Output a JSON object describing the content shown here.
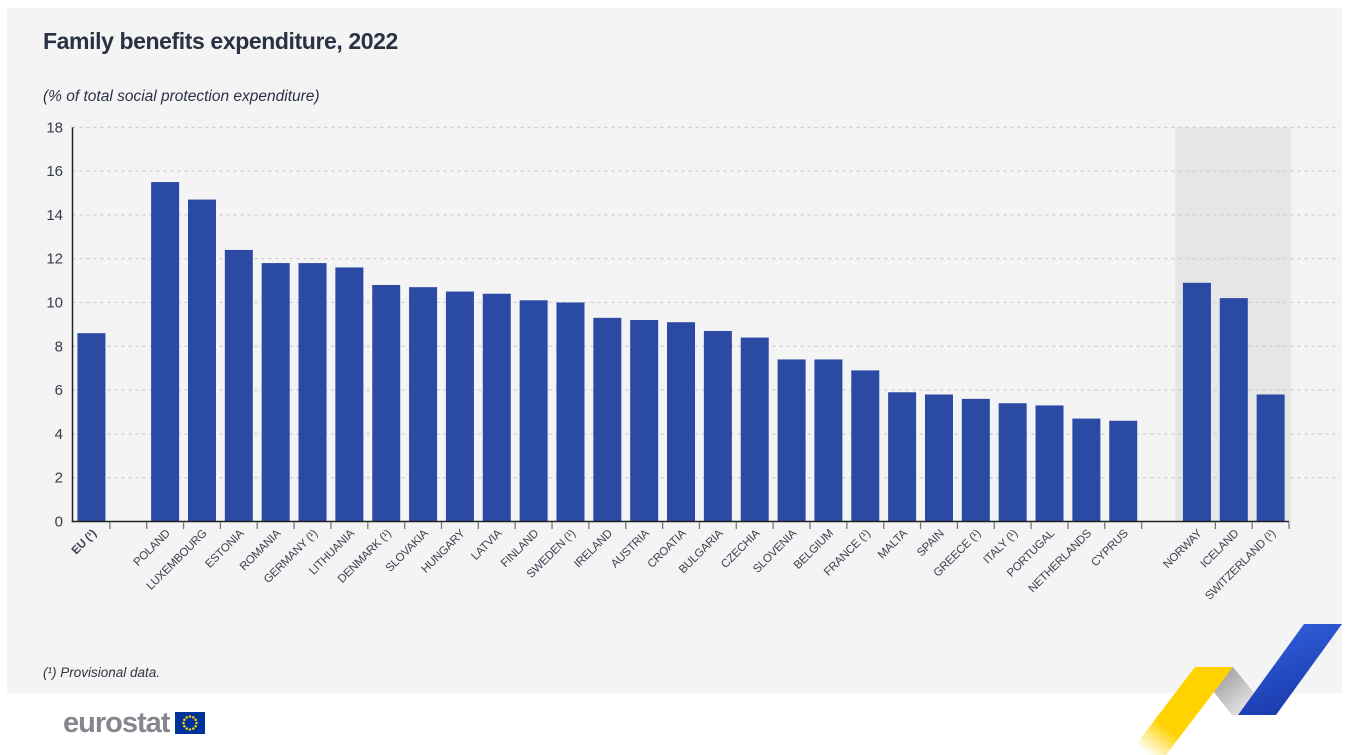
{
  "footnote": "(¹) Provisional data.",
  "logo": {
    "text": "eurostat"
  },
  "colors": {
    "page_bg": "#ffffff",
    "card_bg": "#f4f4f4",
    "bar": "#2a4aa4",
    "efta_shade": "#e6e6e6",
    "gridline": "#c9c9c9",
    "axis_line": "#222222",
    "tick": "#777777",
    "title_text": "#293143",
    "axis_text": "#333b49",
    "label_text": "#3a4150",
    "footnote_text": "#2e3440",
    "logo_text": "#85878f",
    "flag_blue": "#003399",
    "flag_stars": "#ffcc00",
    "ribbon_yellow": "#ffd200",
    "ribbon_yellow_fade": "#ffffff",
    "ribbon_fold_dark": "#a6a6a6",
    "ribbon_fold_light": "#f7f7f7",
    "ribbon_blue_light": "#2f5bd6",
    "ribbon_blue_dark": "#1434a4"
  },
  "chart_data": {
    "type": "bar",
    "title": "Family benefits expenditure, 2022",
    "subtitle": "(% of total social protection expenditure)",
    "ylabel": "",
    "xlabel": "",
    "ylim": [
      0,
      18
    ],
    "y_ticks": [
      0,
      2,
      4,
      6,
      8,
      10,
      12,
      14,
      16,
      18
    ],
    "grid": "horizontal-dashed",
    "legend": "none",
    "sections": [
      {
        "name": "eu-average",
        "shaded": false,
        "bars": [
          {
            "label": "EU (¹)",
            "value": 8.6,
            "bold": true
          }
        ]
      },
      {
        "name": "eu-members",
        "shaded": false,
        "bars": [
          {
            "label": "POLAND",
            "value": 15.5
          },
          {
            "label": "LUXEMBOURG",
            "value": 14.7
          },
          {
            "label": "ESTONIA",
            "value": 12.4
          },
          {
            "label": "ROMANIA",
            "value": 11.8
          },
          {
            "label": "GERMANY (¹)",
            "value": 11.8
          },
          {
            "label": "LITHUANIA",
            "value": 11.6
          },
          {
            "label": "DENMARK (¹)",
            "value": 10.8
          },
          {
            "label": "SLOVAKIA",
            "value": 10.7
          },
          {
            "label": "HUNGARY",
            "value": 10.5
          },
          {
            "label": "LATVIA",
            "value": 10.4
          },
          {
            "label": "FINLAND",
            "value": 10.1
          },
          {
            "label": "SWEDEN (¹)",
            "value": 10.0
          },
          {
            "label": "IRELAND",
            "value": 9.3
          },
          {
            "label": "AUSTRIA",
            "value": 9.2
          },
          {
            "label": "CROATIA",
            "value": 9.1
          },
          {
            "label": "BULGARIA",
            "value": 8.7
          },
          {
            "label": "CZECHIA",
            "value": 8.4
          },
          {
            "label": "SLOVENIA",
            "value": 7.4
          },
          {
            "label": "BELGIUM",
            "value": 7.4
          },
          {
            "label": "FRANCE (¹)",
            "value": 6.9
          },
          {
            "label": "MALTA",
            "value": 5.9
          },
          {
            "label": "SPAIN",
            "value": 5.8
          },
          {
            "label": "GREECE (¹)",
            "value": 5.6
          },
          {
            "label": "ITALY (¹)",
            "value": 5.4
          },
          {
            "label": "PORTUGAL",
            "value": 5.3
          },
          {
            "label": "NETHERLANDS",
            "value": 4.7
          },
          {
            "label": "CYPRUS",
            "value": 4.6
          }
        ]
      },
      {
        "name": "efta",
        "shaded": true,
        "bars": [
          {
            "label": "NORWAY",
            "value": 10.9
          },
          {
            "label": "ICELAND",
            "value": 10.2
          },
          {
            "label": "SWITZERLAND (¹)",
            "value": 5.8
          }
        ]
      }
    ]
  }
}
